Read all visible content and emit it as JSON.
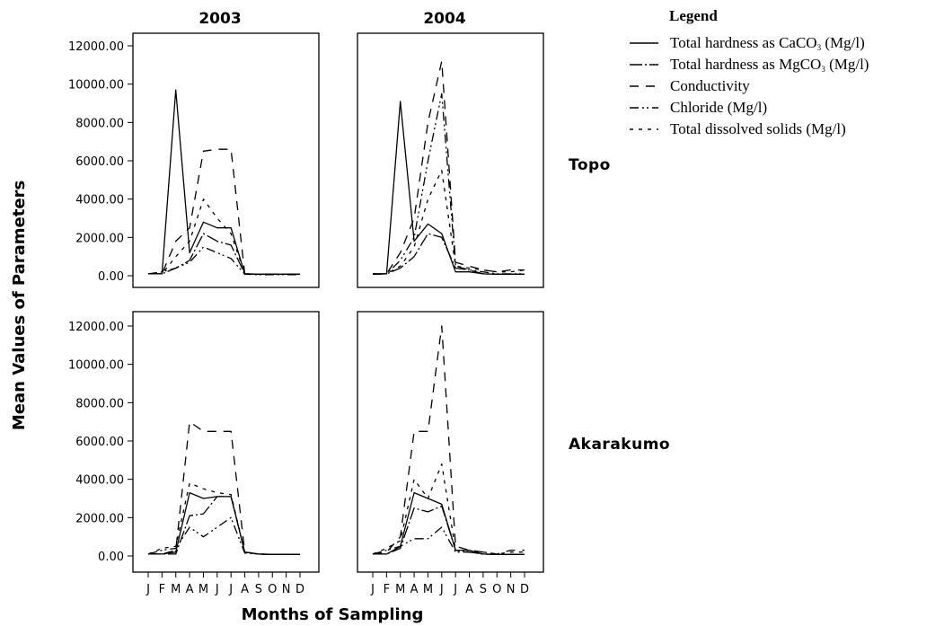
{
  "chart_data": {
    "type": "line",
    "ylabel": "Mean Values of Parameters",
    "xlabel": "Months of Sampling",
    "columns": [
      "2003",
      "2004"
    ],
    "rows": [
      "Topo",
      "Akarakumo"
    ],
    "months": [
      "J",
      "F",
      "M",
      "A",
      "M",
      "J",
      "J",
      "A",
      "S",
      "O",
      "N",
      "D"
    ],
    "ylim": [
      0,
      12000
    ],
    "yticks": [
      "0.00",
      "2000.00",
      "4000.00",
      "6000.00",
      "8000.00",
      "10000.00",
      "12000.00"
    ],
    "legend": {
      "title": "Legend",
      "placement": "top-right",
      "entries": [
        {
          "key": "caco3",
          "label": "Total hardness as CaCO",
          "sub": "3",
          "tail": " (Mg/l)",
          "dash": ""
        },
        {
          "key": "mgco3",
          "label": "Total hardness as MgCO",
          "sub": "3",
          "tail": " (Mg/l)",
          "dash": "14,3,2,3"
        },
        {
          "key": "cond",
          "label": "Conductivity",
          "sub": "",
          "tail": "",
          "dash": "10,8"
        },
        {
          "key": "chl",
          "label": "Chloride (Mg/l)",
          "sub": "",
          "tail": "",
          "dash": "10,4,2,3,2,4"
        },
        {
          "key": "tds",
          "label": "Total dissolved solids (Mg/l)",
          "sub": "",
          "tail": "",
          "dash": "4,6"
        }
      ]
    },
    "panels": [
      {
        "row": "Topo",
        "col": "2003",
        "series": [
          {
            "key": "caco3",
            "values": [
              100,
              100,
              9700,
              1200,
              2800,
              2500,
              2500,
              100,
              80,
              80,
              80,
              80
            ]
          },
          {
            "key": "mgco3",
            "values": [
              100,
              100,
              400,
              800,
              2200,
              1800,
              1600,
              100,
              80,
              80,
              80,
              80
            ]
          },
          {
            "key": "cond",
            "values": [
              100,
              100,
              1800,
              2500,
              6500,
              6600,
              6600,
              100,
              80,
              80,
              80,
              80
            ]
          },
          {
            "key": "chl",
            "values": [
              100,
              200,
              400,
              700,
              1500,
              1200,
              900,
              80,
              50,
              50,
              50,
              50
            ]
          },
          {
            "key": "tds",
            "values": [
              100,
              100,
              1000,
              1800,
              4000,
              3000,
              2200,
              100,
              80,
              80,
              80,
              80
            ]
          }
        ]
      },
      {
        "row": "Topo",
        "col": "2004",
        "series": [
          {
            "key": "caco3",
            "values": [
              100,
              100,
              9100,
              1800,
              2700,
              2200,
              200,
              200,
              100,
              80,
              80,
              80
            ]
          },
          {
            "key": "mgco3",
            "values": [
              80,
              100,
              400,
              1000,
              2200,
              2000,
              400,
              300,
              100,
              80,
              80,
              80
            ]
          },
          {
            "key": "cond",
            "values": [
              100,
              100,
              1200,
              3000,
              8000,
              11200,
              700,
              500,
              300,
              200,
              300,
              300
            ]
          },
          {
            "key": "chl",
            "values": [
              80,
              100,
              800,
              2000,
              6000,
              9500,
              500,
              300,
              200,
              100,
              100,
              100
            ]
          },
          {
            "key": "tds",
            "values": [
              100,
              100,
              500,
              1500,
              4000,
              5500,
              500,
              400,
              300,
              200,
              200,
              300
            ]
          }
        ]
      },
      {
        "row": "Akarakumo",
        "col": "2003",
        "series": [
          {
            "key": "caco3",
            "values": [
              100,
              100,
              200,
              3300,
              3000,
              3100,
              3100,
              200,
              100,
              80,
              80,
              80
            ]
          },
          {
            "key": "mgco3",
            "values": [
              100,
              100,
              100,
              2100,
              2200,
              3100,
              3100,
              200,
              100,
              80,
              80,
              80
            ]
          },
          {
            "key": "cond",
            "values": [
              100,
              100,
              300,
              7000,
              6500,
              6500,
              6500,
              200,
              100,
              80,
              80,
              80
            ]
          },
          {
            "key": "chl",
            "values": [
              100,
              300,
              400,
              1500,
              1000,
              1500,
              2000,
              150,
              100,
              80,
              80,
              80
            ]
          },
          {
            "key": "tds",
            "values": [
              100,
              400,
              500,
              3800,
              3500,
              3300,
              3200,
              200,
              100,
              80,
              80,
              80
            ]
          }
        ]
      },
      {
        "row": "Akarakumo",
        "col": "2004",
        "series": [
          {
            "key": "caco3",
            "values": [
              100,
              100,
              500,
              3300,
              3000,
              2700,
              300,
              300,
              100,
              80,
              80,
              80
            ]
          },
          {
            "key": "mgco3",
            "values": [
              100,
              100,
              400,
              2500,
              2300,
              2600,
              300,
              200,
              100,
              80,
              80,
              80
            ]
          },
          {
            "key": "cond",
            "values": [
              100,
              200,
              1000,
              6500,
              6500,
              12000,
              500,
              300,
              200,
              100,
              300,
              300
            ]
          },
          {
            "key": "chl",
            "values": [
              100,
              300,
              500,
              900,
              900,
              1500,
              200,
              200,
              100,
              80,
              80,
              80
            ]
          },
          {
            "key": "tds",
            "values": [
              100,
              400,
              800,
              4000,
              3000,
              4800,
              300,
              300,
              200,
              100,
              200,
              200
            ]
          }
        ]
      }
    ]
  }
}
